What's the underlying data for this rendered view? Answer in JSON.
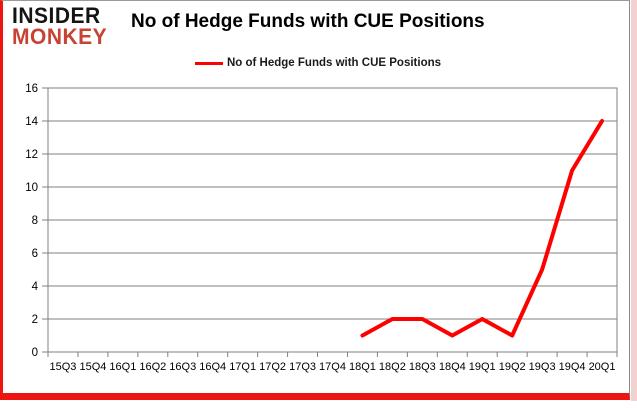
{
  "brand": {
    "line1": "INSIDER",
    "line2": "MONKEY"
  },
  "header": {
    "title": "No of Hedge Funds with CUE Positions"
  },
  "legend": {
    "label": "No of Hedge Funds with CUE Positions"
  },
  "colors": {
    "line": "#ff0000",
    "grid": "#808080",
    "axis_text": "#000000",
    "border_red": "#ee1511",
    "pink_band": "#f2d2ce",
    "brand_black": "#141414",
    "brand_red": "#c84334"
  },
  "chart_data": {
    "type": "line",
    "title": "No of Hedge Funds with CUE Positions",
    "categories": [
      "15Q3",
      "15Q4",
      "16Q1",
      "16Q2",
      "16Q3",
      "16Q4",
      "17Q1",
      "17Q2",
      "17Q3",
      "17Q4",
      "18Q1",
      "18Q2",
      "18Q3",
      "18Q4",
      "19Q1",
      "19Q2",
      "19Q3",
      "19Q4",
      "20Q1"
    ],
    "series": [
      {
        "name": "No of Hedge Funds with CUE Positions",
        "color": "#ff0000",
        "values": [
          null,
          null,
          null,
          null,
          null,
          null,
          null,
          null,
          null,
          null,
          1,
          2,
          2,
          1,
          2,
          1,
          5,
          11,
          14
        ]
      }
    ],
    "ylim": [
      0,
      16
    ],
    "ytick_step": 2,
    "grid": "horizontal",
    "legend_position": "top",
    "line_width": 4
  }
}
